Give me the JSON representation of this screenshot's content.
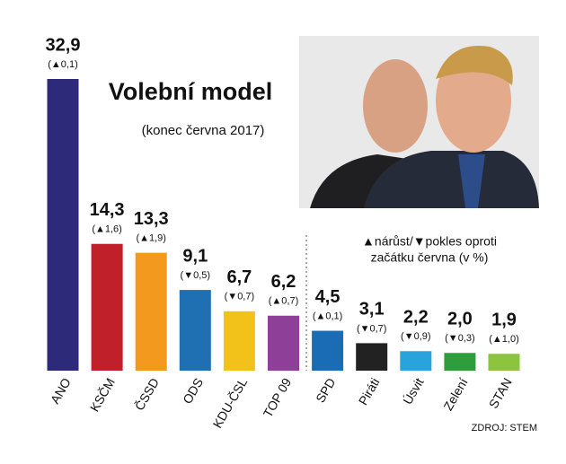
{
  "chart_data": {
    "type": "bar",
    "title": "Volební model",
    "subtitle": "(konec června 2017)",
    "legend_note": [
      "▲nárůst/▼pokles oproti",
      "začátku června (v %)"
    ],
    "source": "ZDROJ: STEM",
    "categories": [
      "ANO",
      "KSČM",
      "ČSSD",
      "ODS",
      "KDU-ČSL",
      "TOP 09",
      "SPD",
      "Piráti",
      "Úsvit",
      "Zelení",
      "STAN"
    ],
    "values": [
      32.9,
      14.3,
      13.3,
      9.1,
      6.7,
      6.2,
      4.5,
      3.1,
      2.2,
      2.0,
      1.9
    ],
    "value_labels": [
      "32,9",
      "14,3",
      "13,3",
      "9,1",
      "6,7",
      "6,2",
      "4,5",
      "3,1",
      "2,2",
      "2,0",
      "1,9"
    ],
    "change_labels": [
      "(▲0,1)",
      "(▲1,6)",
      "(▲1,9)",
      "(▼0,5)",
      "(▼0,7)",
      "(▲0,7)",
      "(▲0,1)",
      "(▼0,7)",
      "(▼0,9)",
      "(▼0,3)",
      "(▲1,0)"
    ],
    "colors": [
      "#2e2a7a",
      "#c0202a",
      "#f39a1e",
      "#1f6fb3",
      "#f2c21b",
      "#8e3f97",
      "#1a6db5",
      "#222222",
      "#29a3dc",
      "#2e9d3d",
      "#8cc43f"
    ]
  }
}
